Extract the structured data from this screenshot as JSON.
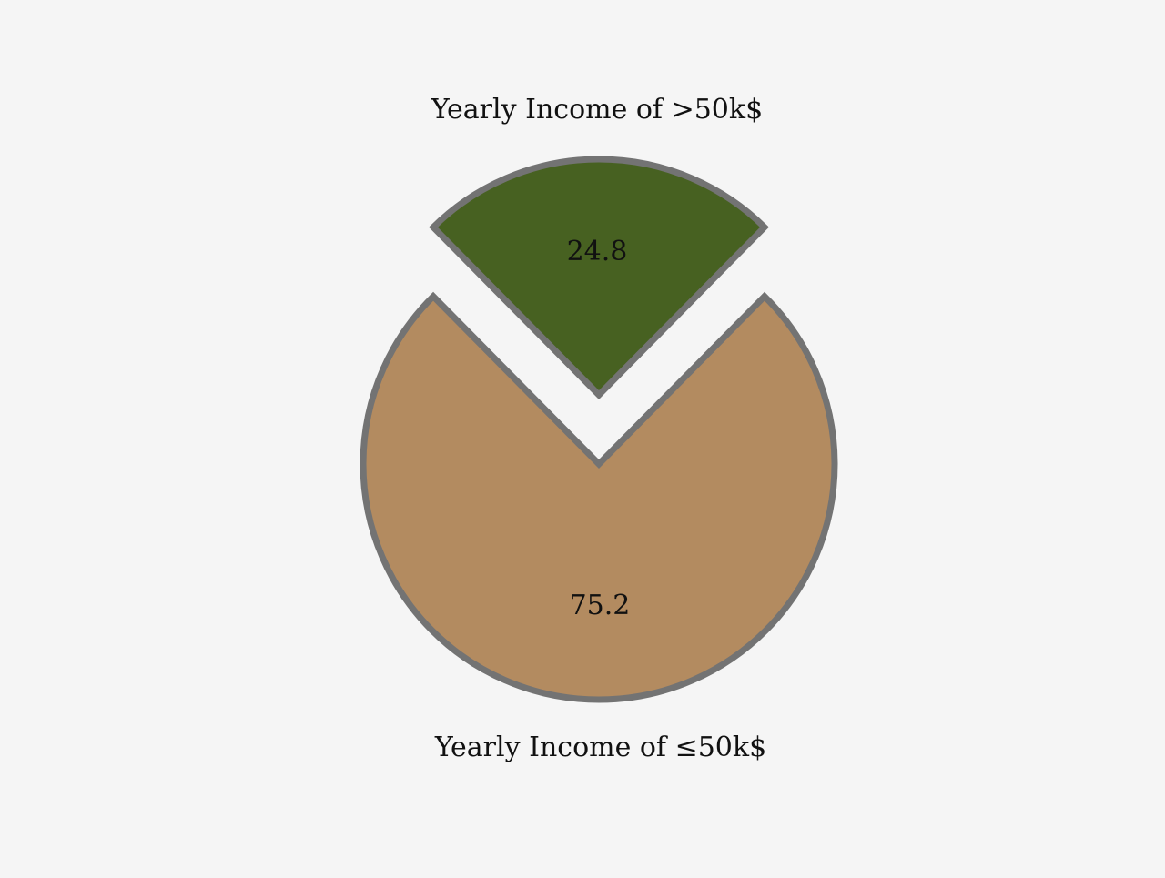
{
  "chart_data": {
    "type": "pie",
    "slices": [
      {
        "label": "Yearly Income of >50k$",
        "value": 24.8,
        "color": "#476121",
        "exploded": true
      },
      {
        "label": "Yearly Income of ≤50k$",
        "value": 75.2,
        "color": "#b38b60",
        "exploded": false
      }
    ],
    "value_labels": [
      "24.8",
      "75.2"
    ],
    "edge_color": "#737373",
    "background_color": "#f5f5f5",
    "legend": "none"
  }
}
